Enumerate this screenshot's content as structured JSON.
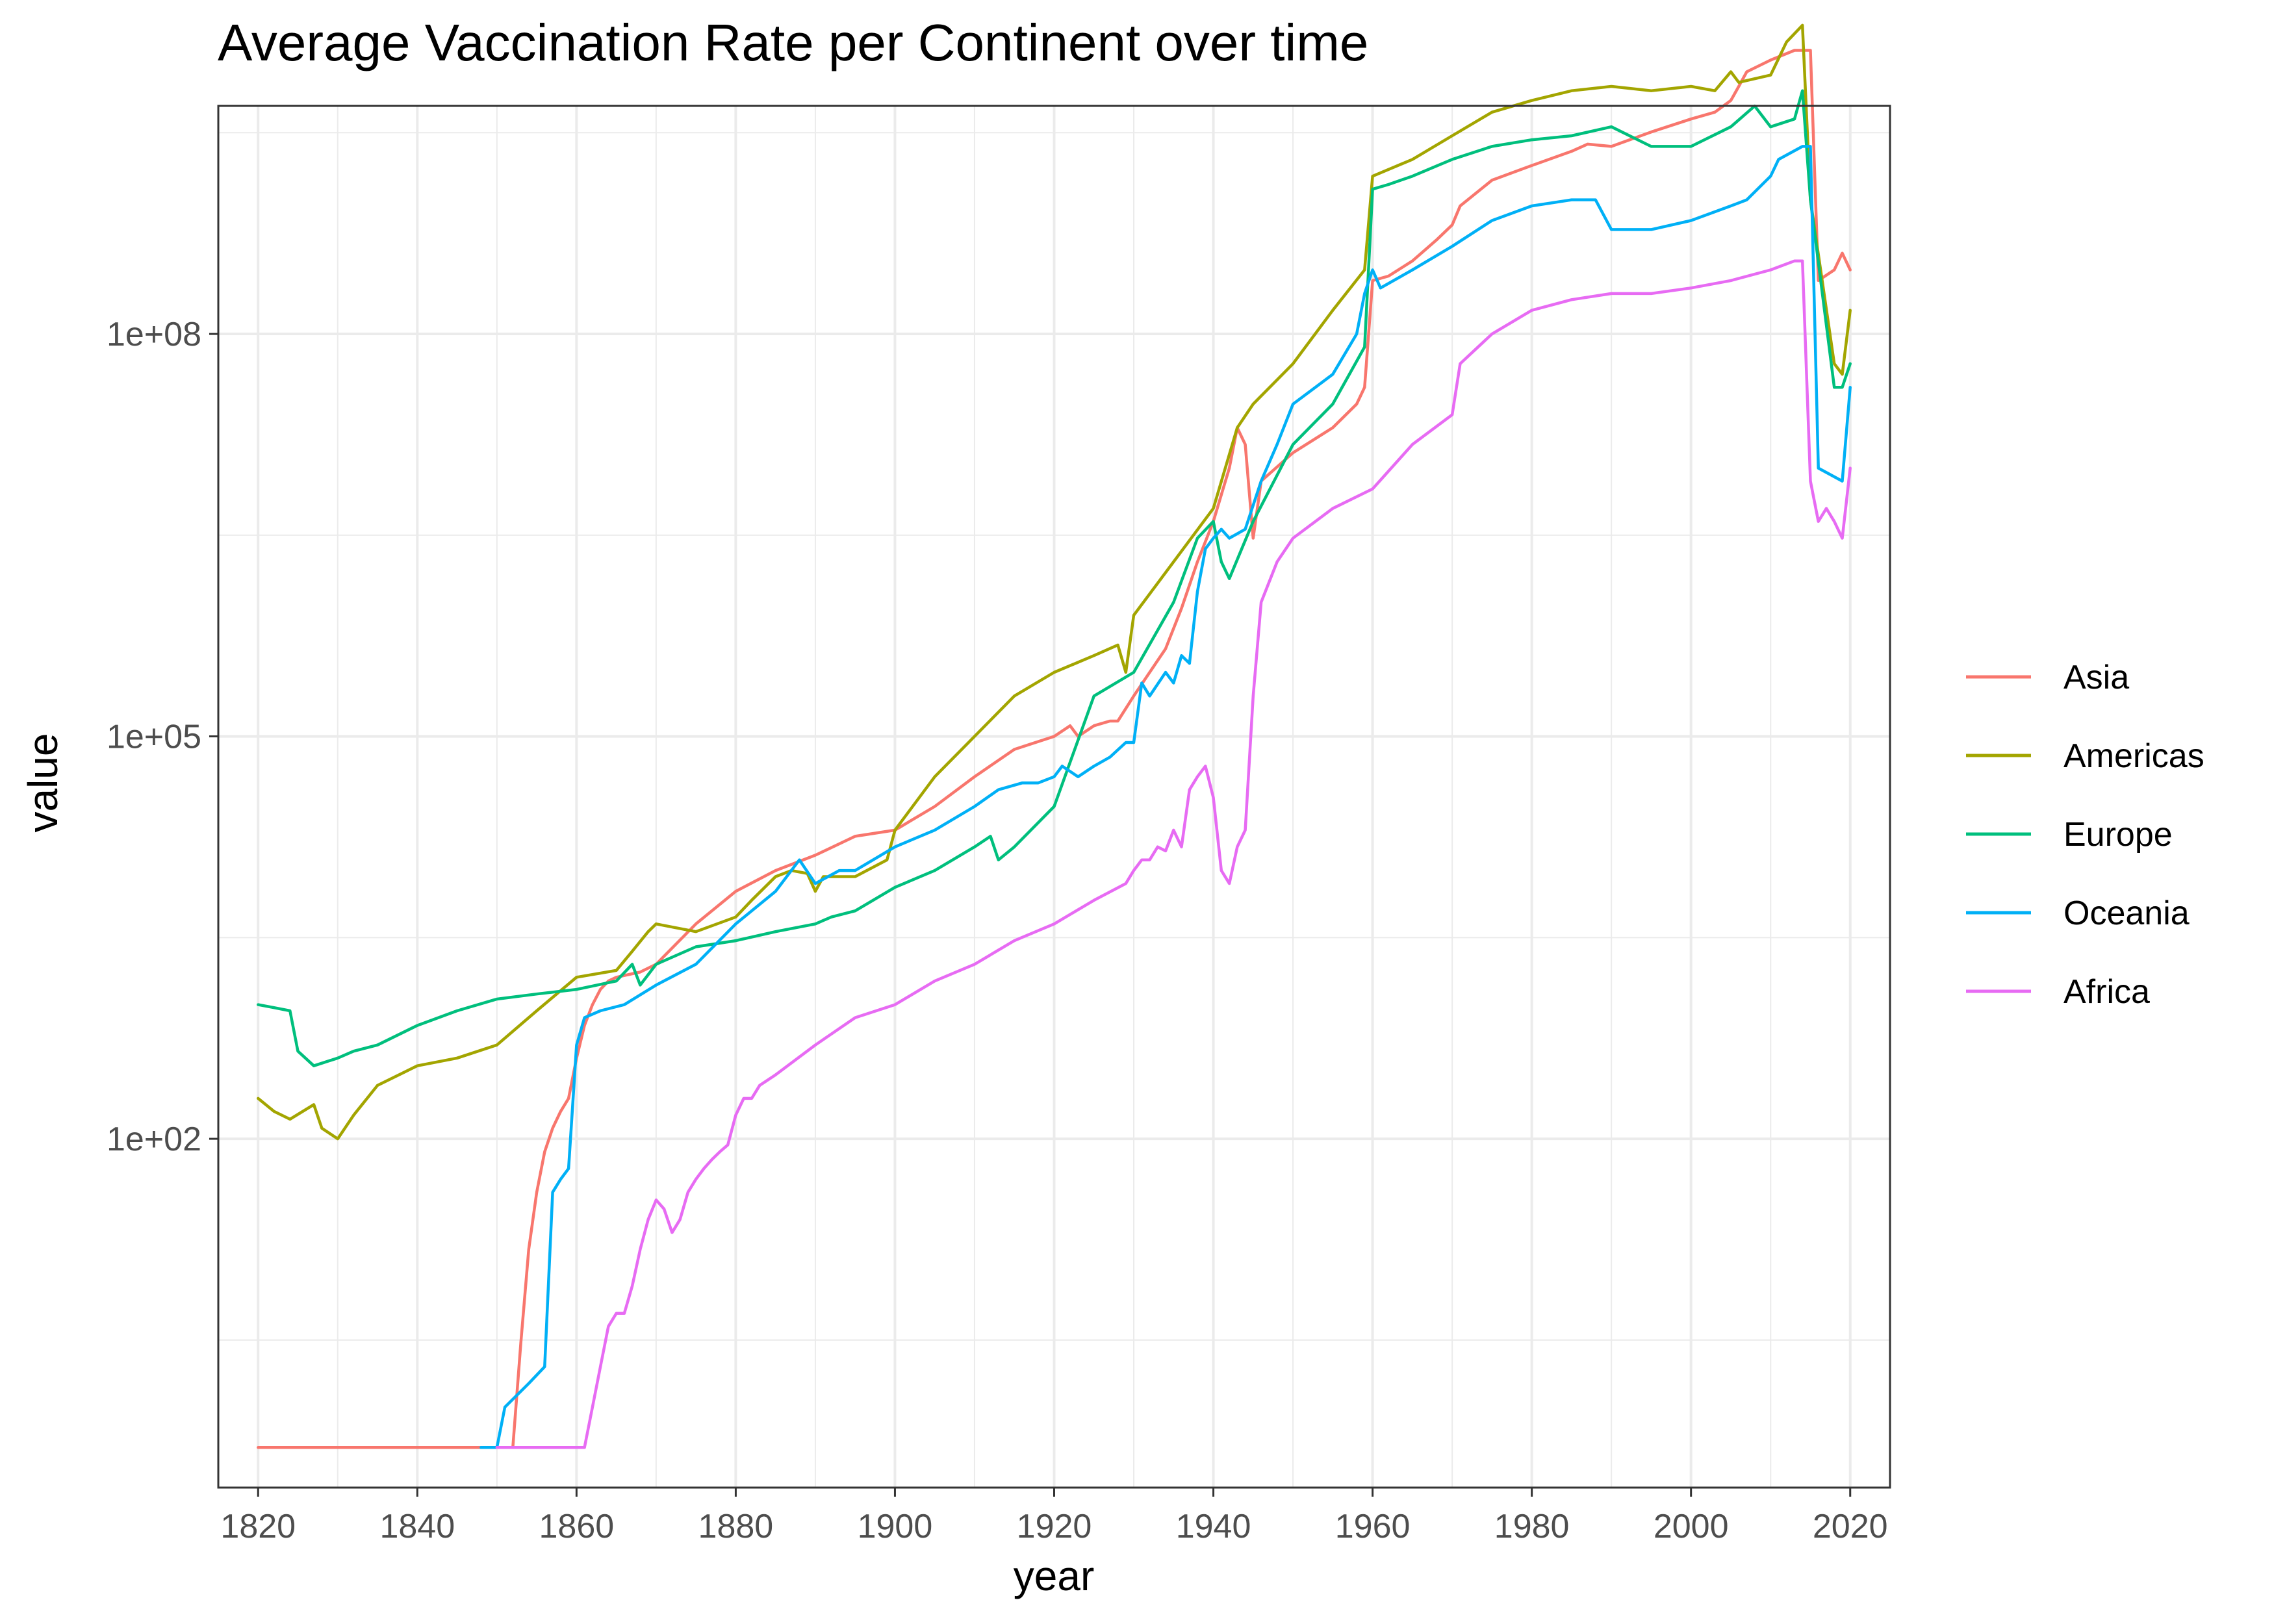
{
  "chart_data": {
    "type": "line",
    "title": "Average Vaccination Rate per Continent over time",
    "xlabel": "year",
    "ylabel": "value",
    "x_scale": "linear",
    "y_scale": "log10",
    "xlim": [
      1815,
      2025
    ],
    "ylim_log10": [
      -0.6,
      9.7
    ],
    "x_ticks": [
      1820,
      1840,
      1860,
      1880,
      1900,
      1920,
      1940,
      1960,
      1980,
      2000,
      2020
    ],
    "y_ticks": [
      {
        "value": 100,
        "label": "1e+02"
      },
      {
        "value": 100000,
        "label": "1e+05"
      },
      {
        "value": 100000000,
        "label": "1e+08"
      }
    ],
    "grid": true,
    "legend_position": "right",
    "series": [
      {
        "name": "Asia",
        "color": "#F8766D",
        "x": [
          1820,
          1852,
          1853,
          1854,
          1855,
          1856,
          1857,
          1858,
          1859,
          1860,
          1861,
          1862,
          1863,
          1864,
          1865,
          1866,
          1867,
          1868,
          1870,
          1875,
          1880,
          1885,
          1890,
          1895,
          1900,
          1905,
          1910,
          1915,
          1920,
          1922,
          1923,
          1925,
          1927,
          1928,
          1930,
          1932,
          1934,
          1936,
          1938,
          1940,
          1942,
          1943,
          1944,
          1945,
          1946,
          1950,
          1955,
          1958,
          1959,
          1960,
          1962,
          1965,
          1968,
          1970,
          1971,
          1975,
          1980,
          1985,
          1987,
          1990,
          1995,
          2000,
          2003,
          2005,
          2006,
          2007,
          2010,
          2013,
          2014,
          2015,
          2016,
          2018,
          2019,
          2020
        ],
        "y": [
          0.5,
          0.5,
          3,
          15,
          40,
          80,
          120,
          160,
          200,
          400,
          700,
          1000,
          1300,
          1500,
          1600,
          1650,
          1700,
          1750,
          2000,
          4000,
          7000,
          10000,
          13000,
          18000,
          20000,
          30000,
          50000,
          80000,
          100000,
          120000,
          100000,
          120000,
          130000,
          130000,
          200000,
          300000,
          450000,
          900000,
          2000000,
          4000000,
          10000000,
          20000000,
          15000000,
          3000000,
          8000000,
          13000000,
          20000000,
          30000000,
          40000000,
          250000000,
          270000000,
          350000000,
          500000000,
          650000000,
          900000000,
          1400000000,
          1800000000,
          2300000000,
          2600000000,
          2500000000,
          3200000000,
          4000000000,
          4500000000,
          5500000000,
          7000000000,
          9000000000,
          11000000000,
          13000000000,
          13000000000,
          13000000000,
          250000000,
          300000000,
          400000000,
          300000000
        ]
      },
      {
        "name": "Americas",
        "color": "#A3A500",
        "x": [
          1820,
          1822,
          1824,
          1827,
          1828,
          1830,
          1832,
          1835,
          1840,
          1845,
          1850,
          1855,
          1860,
          1865,
          1867,
          1869,
          1870,
          1875,
          1880,
          1882,
          1885,
          1887,
          1889,
          1890,
          1891,
          1895,
          1899,
          1900,
          1905,
          1910,
          1915,
          1920,
          1925,
          1928,
          1929,
          1930,
          1935,
          1940,
          1943,
          1945,
          1950,
          1955,
          1959,
          1960,
          1965,
          1970,
          1975,
          1980,
          1985,
          1990,
          1995,
          2000,
          2003,
          2005,
          2006,
          2010,
          2012,
          2014,
          2015,
          2018,
          2019,
          2020
        ],
        "y": [
          200,
          160,
          140,
          180,
          120,
          100,
          150,
          250,
          350,
          400,
          500,
          900,
          1600,
          1800,
          2500,
          3500,
          4000,
          3500,
          4500,
          6000,
          9000,
          10000,
          9500,
          7000,
          9000,
          9000,
          12000,
          20000,
          50000,
          100000,
          200000,
          300000,
          400000,
          480000,
          300000,
          800000,
          2000000,
          5000000,
          20000000,
          30000000,
          60000000,
          150000000,
          300000000,
          1500000000,
          2000000000,
          3000000000,
          4500000000,
          5500000000,
          6500000000,
          7000000000,
          6500000000,
          7000000000,
          6500000000,
          9000000000,
          7500000000,
          8500000000,
          15000000000,
          20000000000,
          1000000000,
          60000000,
          50000000,
          150000000
        ]
      },
      {
        "name": "Europe",
        "color": "#00BF7D",
        "x": [
          1820,
          1822,
          1824,
          1825,
          1827,
          1830,
          1832,
          1835,
          1840,
          1845,
          1850,
          1855,
          1860,
          1865,
          1867,
          1868,
          1870,
          1875,
          1880,
          1885,
          1890,
          1892,
          1895,
          1900,
          1905,
          1910,
          1912,
          1913,
          1915,
          1920,
          1925,
          1930,
          1935,
          1938,
          1940,
          1941,
          1942,
          1945,
          1950,
          1955,
          1959,
          1960,
          1962,
          1965,
          1970,
          1975,
          1980,
          1985,
          1990,
          1995,
          2000,
          2005,
          2008,
          2010,
          2013,
          2014,
          2015,
          2018,
          2019,
          2020
        ],
        "y": [
          1000,
          950,
          900,
          450,
          350,
          400,
          450,
          500,
          700,
          900,
          1100,
          1200,
          1300,
          1500,
          2000,
          1400,
          2000,
          2700,
          3000,
          3500,
          4000,
          4500,
          5000,
          7500,
          10000,
          15000,
          18000,
          12000,
          15000,
          30000,
          200000,
          300000,
          1000000,
          3000000,
          4000000,
          2000000,
          1500000,
          4000000,
          15000000,
          30000000,
          80000000,
          1200000000,
          1300000000,
          1500000000,
          2000000000,
          2500000000,
          2800000000,
          3000000000,
          3500000000,
          2500000000,
          2500000000,
          3500000000,
          5000000000,
          3500000000,
          4000000000,
          6500000000,
          1000000000,
          40000000,
          40000000,
          60000000
        ]
      },
      {
        "name": "Oceania",
        "color": "#00B0F6",
        "x": [
          1848,
          1850,
          1851,
          1854,
          1856,
          1857,
          1858,
          1859,
          1860,
          1861,
          1863,
          1866,
          1870,
          1875,
          1880,
          1885,
          1888,
          1890,
          1893,
          1895,
          1900,
          1905,
          1910,
          1913,
          1916,
          1918,
          1920,
          1921,
          1923,
          1925,
          1927,
          1929,
          1930,
          1931,
          1932,
          1934,
          1935,
          1936,
          1937,
          1938,
          1939,
          1940,
          1941,
          1942,
          1944,
          1946,
          1948,
          1950,
          1955,
          1958,
          1959,
          1960,
          1961,
          1965,
          1970,
          1975,
          1980,
          1985,
          1988,
          1990,
          1993,
          1995,
          2000,
          2005,
          2007,
          2010,
          2011,
          2014,
          2015,
          2016,
          2019,
          2020
        ],
        "y": [
          0.5,
          0.5,
          1,
          1.5,
          2,
          40,
          50,
          60,
          500,
          800,
          900,
          1000,
          1400,
          2000,
          4000,
          7000,
          12000,
          8000,
          10000,
          10000,
          15000,
          20000,
          30000,
          40000,
          45000,
          45000,
          50000,
          60000,
          50000,
          60000,
          70000,
          90000,
          90000,
          250000,
          200000,
          300000,
          250000,
          400000,
          350000,
          1200000,
          2500000,
          3000000,
          3500000,
          3000000,
          3500000,
          8000000,
          15000000,
          30000000,
          50000000,
          100000000,
          200000000,
          300000000,
          220000000,
          300000000,
          450000000,
          700000000,
          900000000,
          1000000000,
          1000000000,
          600000000,
          600000000,
          600000000,
          700000000,
          900000000,
          1000000000,
          1500000000,
          2000000000,
          2500000000,
          2500000000,
          10000000,
          8000000,
          40000000
        ]
      },
      {
        "name": "Africa",
        "color": "#E76BF3",
        "x": [
          1850,
          1861,
          1862,
          1863,
          1864,
          1865,
          1866,
          1867,
          1868,
          1869,
          1870,
          1871,
          1872,
          1873,
          1874,
          1875,
          1876,
          1877,
          1878,
          1879,
          1880,
          1881,
          1882,
          1883,
          1885,
          1890,
          1895,
          1900,
          1905,
          1910,
          1915,
          1920,
          1925,
          1929,
          1930,
          1931,
          1932,
          1933,
          1934,
          1935,
          1936,
          1937,
          1938,
          1939,
          1940,
          1941,
          1942,
          1943,
          1944,
          1945,
          1946,
          1948,
          1950,
          1955,
          1960,
          1965,
          1970,
          1971,
          1975,
          1980,
          1985,
          1990,
          1995,
          2000,
          2005,
          2010,
          2013,
          2014,
          2015,
          2016,
          2017,
          2018,
          2019,
          2020
        ],
        "y": [
          0.5,
          0.5,
          1,
          2,
          4,
          5,
          5,
          8,
          15,
          25,
          35,
          30,
          20,
          25,
          40,
          50,
          60,
          70,
          80,
          90,
          150,
          200,
          200,
          250,
          300,
          500,
          800,
          1000,
          1500,
          2000,
          3000,
          4000,
          6000,
          8000,
          10000,
          12000,
          12000,
          15000,
          14000,
          20000,
          15000,
          40000,
          50000,
          60000,
          35000,
          10000,
          8000,
          15000,
          20000,
          200000,
          1000000,
          2000000,
          3000000,
          5000000,
          7000000,
          15000000,
          25000000,
          60000000,
          100000000,
          150000000,
          180000000,
          200000000,
          200000000,
          220000000,
          250000000,
          300000000,
          350000000,
          350000000,
          8000000,
          4000000,
          5000000,
          4000000,
          3000000,
          10000000
        ]
      }
    ]
  }
}
